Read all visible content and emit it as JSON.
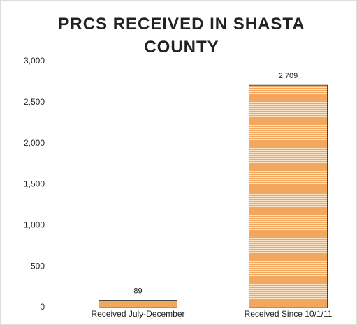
{
  "chart_data": {
    "type": "bar",
    "title": "PRCS RECEIVED IN SHASTA COUNTY",
    "categories": [
      "Received July-December",
      "Received Since 10/1/11"
    ],
    "values": [
      89,
      2709
    ],
    "value_labels": [
      "89",
      "2,709"
    ],
    "color": "#f2a65e",
    "ylim": [
      0,
      3000
    ],
    "yticks": [
      0,
      500,
      {
        "value": 1000,
        "label": "1,000"
      },
      {
        "value": 1500,
        "label": "1,500"
      },
      {
        "value": 2000,
        "label": "2,000"
      },
      {
        "value": 2500,
        "label": "2,500"
      },
      {
        "value": 3000,
        "label": "3,000"
      }
    ],
    "grid": false
  }
}
